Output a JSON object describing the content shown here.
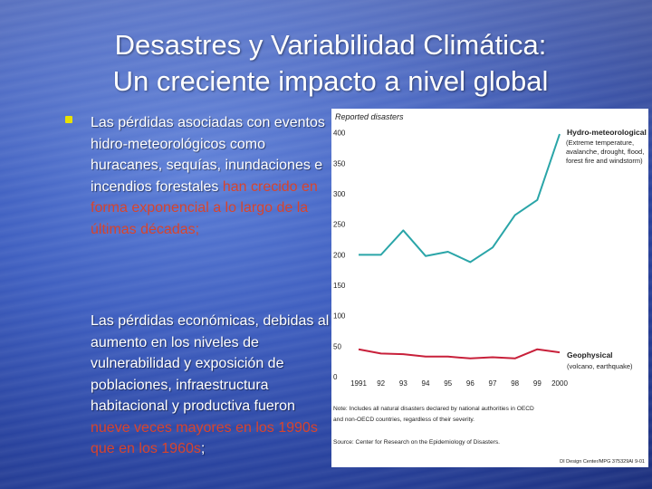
{
  "slide": {
    "title_line1": "Desastres y Variabilidad Climática:",
    "title_line2": "Un creciente impacto a nivel global"
  },
  "paragraph1": {
    "normal": "Las pérdidas asociadas con eventos hidro-meteorológicos como huracanes, sequías, inundaciones e incendios forestales ",
    "highlight": "han crecido en forma exponencial a lo largo de la últimas décadas;"
  },
  "paragraph2": {
    "normal": "Las pérdidas económicas, debidas al aumento en los niveles de vulnerabilidad y exposición de poblaciones, infraestructura habitacional y productiva fueron ",
    "highlight1": "nueve",
    "highlight2": "veces mayores en los 1990s que en los 1960s",
    "tail": ";"
  },
  "colors": {
    "bullet": "#e8e100",
    "highlight": "#d8442c",
    "hydro_line": "#2aa5a8",
    "geo_line": "#c8203a"
  },
  "chart_data": {
    "type": "line",
    "title": "Reported disasters",
    "x": [
      "1991",
      "92",
      "93",
      "94",
      "95",
      "96",
      "97",
      "98",
      "99",
      "2000"
    ],
    "yticks": [
      "0",
      "50",
      "100",
      "150",
      "200",
      "250",
      "300",
      "350",
      "400"
    ],
    "ylim": [
      0,
      410
    ],
    "grid": false,
    "series": [
      {
        "name": "Hydro-meteorological",
        "description": "(Extreme temperature, avalanche, drought, flood, forest fire and windstorm)",
        "values": [
          200,
          200,
          240,
          198,
          205,
          188,
          212,
          265,
          290,
          398
        ]
      },
      {
        "name": "Geophysical",
        "description": "(volcano, earthquake)",
        "values": [
          45,
          38,
          37,
          33,
          33,
          30,
          32,
          30,
          45,
          40
        ]
      }
    ],
    "note_line1": "Note: Includes all natural disasters declared by national authorities in OECD",
    "note_line2": "and non-OECD countries, regardless of their severity.",
    "source": "Source: Center for Research on the Epidemiology of Disasters.",
    "credit": "DI Design Center/MPG 375329AI 9-01"
  }
}
